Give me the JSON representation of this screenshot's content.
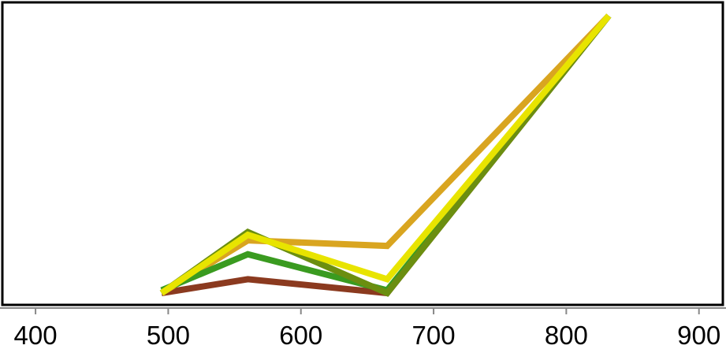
{
  "chart_data": {
    "type": "line",
    "title": "",
    "xlabel": "",
    "ylabel": "",
    "xlim": [
      375,
      918
    ],
    "ylim": [
      0,
      100
    ],
    "x_ticks": [
      400,
      500,
      600,
      700,
      800,
      900
    ],
    "grid": false,
    "legend": "none",
    "x": [
      495,
      560,
      665,
      832
    ],
    "series": [
      {
        "color": "#8b3a1f",
        "values": [
          0,
          5,
          0,
          100
        ]
      },
      {
        "color": "#d9a520",
        "values": [
          0,
          19,
          17,
          100
        ]
      },
      {
        "color": "#3a9b20",
        "values": [
          1,
          14,
          1,
          100
        ]
      },
      {
        "color": "#6b8e10",
        "values": [
          0,
          22,
          0,
          100
        ]
      },
      {
        "color": "#e8e400",
        "values": [
          0,
          21,
          5,
          100
        ]
      }
    ]
  }
}
